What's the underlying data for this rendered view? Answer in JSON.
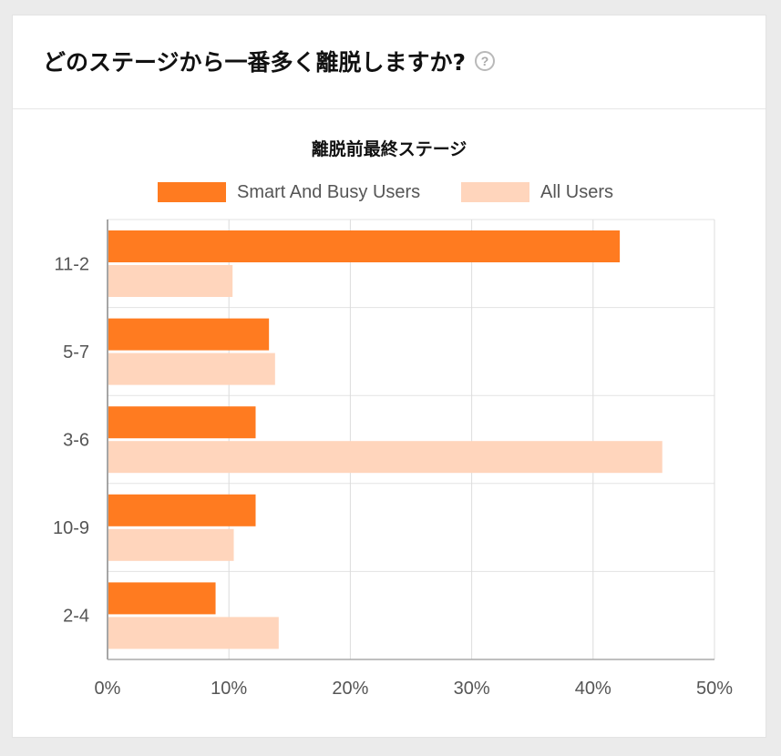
{
  "header": {
    "title": "どのステージから一番多く離脱しますか?",
    "help_icon": "question-circle-icon"
  },
  "chart_data": {
    "type": "bar",
    "orientation": "horizontal",
    "title": "離脱前最終ステージ",
    "categories": [
      "11-2",
      "5-7",
      "3-6",
      "10-9",
      "2-4"
    ],
    "series": [
      {
        "name": "Smart And Busy Users",
        "color": "#ff7b20",
        "values": [
          42.2,
          13.3,
          12.2,
          12.2,
          8.9
        ]
      },
      {
        "name": "All Users",
        "color": "#ffd5bc",
        "values": [
          10.3,
          13.8,
          45.7,
          10.4,
          14.1
        ]
      }
    ],
    "xlim": [
      0,
      50
    ],
    "xticks": [
      "0%",
      "10%",
      "20%",
      "30%",
      "40%",
      "50%"
    ],
    "legend_position": "top",
    "grid": true
  }
}
